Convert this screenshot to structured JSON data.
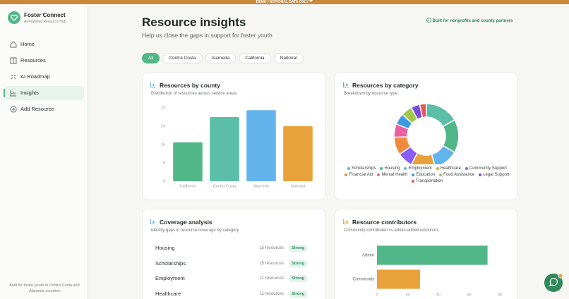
{
  "banner": "DEMO / NOTIONAL DATA ONLY",
  "sidebar": {
    "brand": "Foster Connect",
    "tagline": "AI-Powered Resource Hub",
    "nav": [
      "Home",
      "Resources",
      "AI Roadmap",
      "Insights",
      "Add Resource"
    ],
    "active_nav": "Insights",
    "footer": "Built for foster youth in Contra Costa and Alameda counties"
  },
  "header": {
    "title": "Resource insights",
    "subtitle": "Help us close the gaps in support for foster youth",
    "badge": "Built for nonprofits and county partners"
  },
  "filters": [
    "All",
    "Contra Costa",
    "Alameda",
    "California",
    "National"
  ],
  "active_filter": "All",
  "chart_data": [
    {
      "type": "bar",
      "title": "Resources by county",
      "subtitle": "Distribution of resources across service areas",
      "categories": [
        "California",
        "Contra Costa",
        "Alameda",
        "National"
      ],
      "values": [
        17,
        28,
        31,
        24
      ],
      "colors": [
        "#52b788",
        "#5bbfa7",
        "#63b3ed",
        "#e9a23b"
      ],
      "ylim": [
        0,
        32
      ],
      "yticks": [
        0,
        8,
        16,
        24,
        32
      ],
      "grid": false
    },
    {
      "type": "donut",
      "title": "Resources by category",
      "subtitle": "Breakdown by resource type",
      "categories": [
        "Scholarships",
        "Housing",
        "Employment",
        "Healthcare",
        "Community Support",
        "Financial Aid",
        "Mental Health",
        "Education",
        "Food Assistance",
        "Legal Support",
        "Transportation"
      ],
      "values": [
        15,
        15,
        11,
        11,
        7,
        8,
        6,
        5,
        5,
        4,
        3
      ],
      "colors": [
        "#5bbfa7",
        "#52b788",
        "#63b3ed",
        "#e9a23b",
        "#8b5cf6",
        "#f08a3c",
        "#ec5fa0",
        "#3b9ae1",
        "#a3c94a",
        "#7c4ddb",
        "#e05a5a"
      ]
    },
    {
      "type": "hbar",
      "title": "Resource contributors",
      "subtitle": "Community-contributed vs admin-added resources",
      "categories": [
        "Admin",
        "Community"
      ],
      "values": [
        72,
        28
      ],
      "colors": [
        "#52b788",
        "#e9a23b"
      ],
      "xlim": [
        0,
        80
      ],
      "xticks": [
        0,
        20,
        40,
        60,
        80
      ],
      "grid": false
    }
  ],
  "coverage": {
    "title": "Coverage analysis",
    "subtitle": "Identify gaps in resource coverage by category",
    "rows": [
      {
        "category": "Housing",
        "count": "15 resources",
        "status": "Strong"
      },
      {
        "category": "Scholarships",
        "count": "15 resources",
        "status": "Strong"
      },
      {
        "category": "Employment",
        "count": "11 resources",
        "status": "Strong"
      },
      {
        "category": "Healthcare",
        "count": "11 resources",
        "status": "Strong"
      }
    ]
  }
}
